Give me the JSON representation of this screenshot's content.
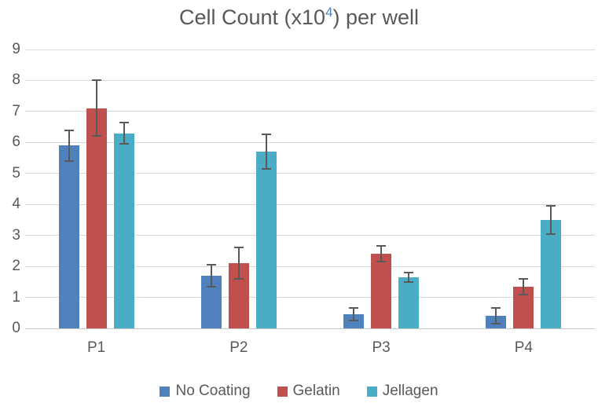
{
  "chart_data": {
    "type": "bar",
    "title": "Cell Count (x10^4) per well",
    "title_parts": {
      "prefix": "Cell Count (x10",
      "superscript": "4",
      "suffix": ") per well"
    },
    "categories": [
      "P1",
      "P2",
      "P3",
      "P4"
    ],
    "series": [
      {
        "name": "No Coating",
        "color": "#4F81BD",
        "values": [
          5.9,
          1.7,
          0.45,
          0.4
        ],
        "errors": [
          0.5,
          0.35,
          0.2,
          0.25
        ]
      },
      {
        "name": "Gelatin",
        "color": "#C0504D",
        "values": [
          7.1,
          2.1,
          2.4,
          1.35
        ],
        "errors": [
          0.9,
          0.5,
          0.25,
          0.25
        ]
      },
      {
        "name": "Jellagen",
        "color": "#4BACC6",
        "values": [
          6.3,
          5.7,
          1.65,
          3.5
        ],
        "errors": [
          0.35,
          0.55,
          0.15,
          0.45
        ]
      }
    ],
    "xlabel": "",
    "ylabel": "",
    "ylim": [
      0,
      9
    ],
    "ytick_step": 1,
    "ytick_labels": [
      "0",
      "1",
      "2",
      "3",
      "4",
      "5",
      "6",
      "7",
      "8",
      "9"
    ],
    "grid": "horizontal",
    "legend_position": "bottom",
    "error_bars": true,
    "colors": {
      "title_text": "#595959",
      "axis_text": "#595959",
      "gridline": "#D9D9D9",
      "axis_line": "#C6C6C6",
      "error_bar": "#595959",
      "superscript": "#4F81BD",
      "background": "#FFFFFF"
    }
  }
}
